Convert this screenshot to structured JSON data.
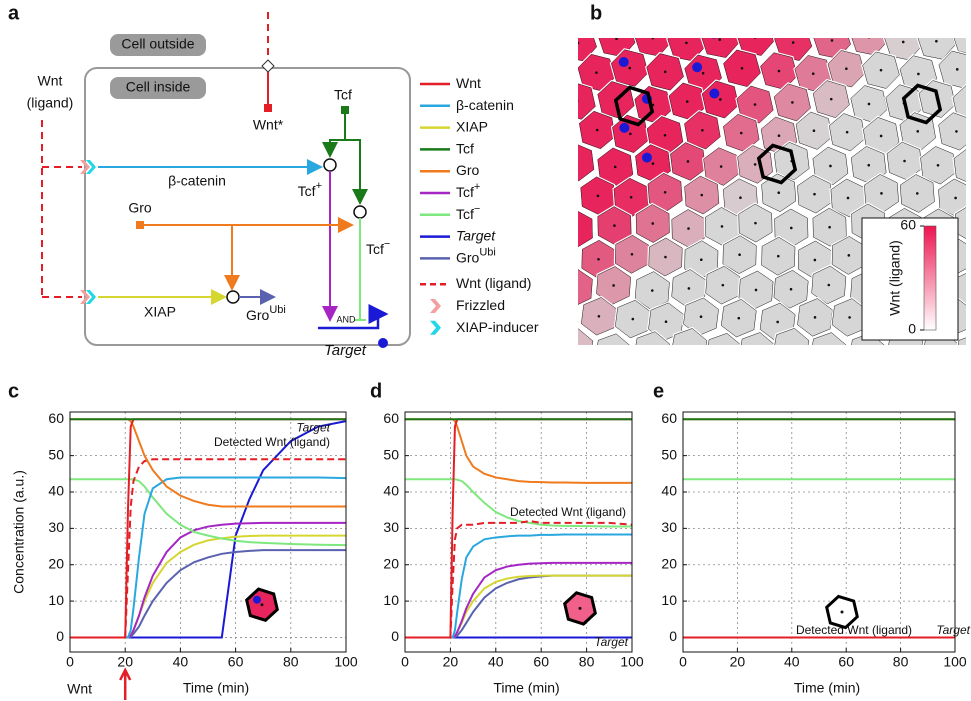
{
  "panel_labels": [
    "a",
    "b",
    "c",
    "d",
    "e"
  ],
  "diagram": {
    "cell_outside": "Cell outside",
    "cell_inside": "Cell inside",
    "wnt_ligand": [
      "Wnt",
      "(ligand)"
    ],
    "wnt_star": "Wnt*",
    "tcf": "Tcf",
    "beta_catenin": "β-catenin",
    "tcf_plus": {
      "base": "Tcf",
      "sup": "+"
    },
    "tcf_minus": {
      "base": "Tcf",
      "sup": "−"
    },
    "gro": "Gro",
    "gro_ubi": {
      "base": "Gro",
      "sup": "Ubi"
    },
    "xiap": "XIAP",
    "and": "AND",
    "target": "Target",
    "legend": [
      {
        "text": "Wnt",
        "color": "#e41e26",
        "style": "line"
      },
      {
        "text": "β-catenin",
        "color": "#29a8e0",
        "style": "line"
      },
      {
        "text": "XIAP",
        "color": "#d6d630",
        "style": "line"
      },
      {
        "text": "Tcf",
        "color": "#1a7a1a",
        "style": "line"
      },
      {
        "text": "Gro",
        "color": "#f07a1e",
        "style": "line"
      },
      {
        "text": "Tcf",
        "sup": "+",
        "color": "#a526c4",
        "style": "line"
      },
      {
        "text": "Tcf",
        "sup": "−",
        "color": "#7ee87e",
        "style": "line"
      },
      {
        "text": "Target",
        "italic": true,
        "color": "#1a1ad6",
        "style": "line"
      },
      {
        "text": "Gro",
        "sup": "Ubi",
        "color": "#5a62b0",
        "style": "line"
      },
      {
        "text": "Wnt (ligand)",
        "color": "#e41e26",
        "style": "dashed"
      },
      {
        "text": "Frizzled",
        "color": "#f4a0a0",
        "style": "chevron"
      },
      {
        "text": "XIAP-inducer",
        "color": "#22d8e8",
        "style": "chevron"
      }
    ]
  },
  "heatmap": {
    "colorbar_label": "Wnt (ligand)",
    "lim": [
      0,
      60
    ],
    "ticks": [
      0,
      60
    ]
  },
  "chart_data": [
    {
      "type": "line",
      "xlabel": "Time (min)",
      "ylabel": "Concentration (a.u.)",
      "annotations": [
        "Target",
        "Detected Wnt (ligand)",
        "Wnt"
      ],
      "xlim": [
        0,
        100
      ],
      "ylim": [
        -4,
        62
      ],
      "xticks": [
        0,
        20,
        40,
        60,
        80,
        100
      ],
      "yticks": [
        0,
        10,
        20,
        30,
        40,
        50,
        60
      ],
      "grid": true,
      "x": [
        0,
        19,
        20,
        21,
        22,
        23,
        25,
        27,
        30,
        35,
        40,
        45,
        50,
        55,
        60,
        65,
        70,
        80,
        90,
        100
      ],
      "series": [
        {
          "color": "#1a1ad6",
          "values": [
            0,
            0,
            0,
            0,
            0,
            0,
            0,
            0,
            0,
            0,
            0,
            0,
            0,
            0,
            28,
            38,
            46,
            54,
            58,
            59.5
          ]
        },
        {
          "color": "#5a62b0",
          "values": [
            0,
            0,
            0,
            0,
            0.2,
            1,
            3,
            6,
            10,
            15,
            18.5,
            20.7,
            22,
            23,
            23.5,
            23.8,
            24,
            24,
            24,
            24
          ]
        },
        {
          "color": "#d6d630",
          "values": [
            0,
            0,
            0,
            0,
            0.5,
            2,
            6,
            10,
            15,
            20.5,
            23.5,
            25.5,
            26.7,
            27.3,
            27.7,
            27.9,
            28,
            28,
            28,
            28
          ]
        },
        {
          "color": "#a526c4",
          "values": [
            0,
            0,
            0,
            0,
            0.5,
            2,
            6,
            11,
            17,
            23.5,
            27.5,
            29.5,
            30.5,
            31,
            31.3,
            31.4,
            31.5,
            31.5,
            31.5,
            31.5
          ]
        },
        {
          "color": "#7ee87e",
          "values": [
            43.5,
            43.5,
            43.5,
            43.5,
            43.5,
            43.4,
            43,
            41.5,
            38.5,
            34,
            31,
            29,
            28,
            27.2,
            26.6,
            26.2,
            26,
            25.7,
            25.5,
            25.4
          ]
        },
        {
          "color": "#29a8e0",
          "values": [
            0,
            0,
            0,
            0,
            2,
            8,
            22,
            34,
            41,
            43.5,
            44,
            44,
            44,
            44,
            44,
            44,
            44,
            44,
            44,
            43.8
          ]
        },
        {
          "color": "#e41e26",
          "dashed": true,
          "values": [
            0,
            0,
            0,
            18,
            36,
            43,
            47,
            48.5,
            49,
            49,
            49,
            49,
            49,
            49,
            49,
            49,
            49,
            49,
            49,
            49
          ]
        },
        {
          "color": "#f07a1e",
          "values": [
            60,
            60,
            60,
            60,
            59.5,
            58,
            54,
            50,
            46,
            41.5,
            39,
            37.5,
            36.5,
            36,
            36,
            36,
            36,
            36,
            36,
            36
          ]
        },
        {
          "color": "#e41e26",
          "values": [
            0,
            0,
            0,
            35,
            58,
            60,
            60,
            60,
            60,
            60,
            60,
            60,
            60,
            60,
            60,
            60,
            60,
            60,
            60,
            60
          ]
        },
        {
          "color": "#1a7a1a",
          "values": [
            60,
            60,
            60,
            60,
            60,
            60,
            60,
            60,
            60,
            60,
            60,
            60,
            60,
            60,
            60,
            60,
            60,
            60,
            60,
            60
          ]
        }
      ]
    },
    {
      "type": "line",
      "xlabel": "Time (min)",
      "annotations": [
        "Target",
        "Detected Wnt (ligand)"
      ],
      "xlim": [
        0,
        100
      ],
      "ylim": [
        -4,
        62
      ],
      "xticks": [
        0,
        20,
        40,
        60,
        80,
        100
      ],
      "yticks": [
        0,
        10,
        20,
        30,
        40,
        50,
        60
      ],
      "grid": true,
      "x": [
        0,
        19,
        20,
        21,
        22,
        23,
        25,
        27,
        30,
        35,
        40,
        45,
        50,
        55,
        60,
        65,
        70,
        80,
        90,
        100
      ],
      "series": [
        {
          "color": "#1a1ad6",
          "values": [
            0,
            0,
            0,
            0,
            0,
            0,
            0,
            0,
            0,
            0,
            0,
            0,
            0,
            0,
            0,
            0,
            0,
            0,
            0,
            0
          ]
        },
        {
          "color": "#5a62b0",
          "values": [
            0,
            0,
            0,
            0,
            0.1,
            0.5,
            2,
            4,
            7,
            11,
            13.5,
            15,
            16,
            16.5,
            16.8,
            17,
            17,
            17,
            17,
            17
          ]
        },
        {
          "color": "#d6d630",
          "values": [
            0,
            0,
            0,
            0,
            0.3,
            1.5,
            4,
            7,
            10,
            13.5,
            15.3,
            16.2,
            16.7,
            16.9,
            17,
            17,
            17,
            17,
            17,
            17
          ]
        },
        {
          "color": "#a526c4",
          "values": [
            0,
            0,
            0,
            0,
            0.3,
            1.5,
            4.5,
            8,
            12,
            16.5,
            18.5,
            19.5,
            20,
            20.3,
            20.4,
            20.5,
            20.5,
            20.5,
            20.5,
            20.5
          ]
        },
        {
          "color": "#7ee87e",
          "values": [
            43.5,
            43.5,
            43.5,
            43.5,
            43.5,
            43.4,
            43,
            42,
            40,
            37,
            34.5,
            33,
            32,
            31.5,
            31,
            30.8,
            30.7,
            30.6,
            30.5,
            30.5
          ]
        },
        {
          "color": "#29a8e0",
          "values": [
            0,
            0,
            0,
            0,
            2,
            7,
            16,
            22,
            25,
            27,
            27.5,
            27.8,
            28,
            28,
            28.2,
            28.2,
            28.3,
            28.3,
            28.3,
            28.3
          ]
        },
        {
          "color": "#e41e26",
          "dashed": true,
          "values": [
            0,
            0,
            0,
            15,
            27,
            30,
            31,
            31,
            31,
            31.5,
            31.5,
            31.5,
            31.5,
            32,
            31.5,
            31.5,
            31.5,
            31.5,
            31.5,
            31
          ]
        },
        {
          "color": "#f07a1e",
          "values": [
            60,
            60,
            60,
            60,
            59.5,
            58,
            54,
            50,
            47,
            45,
            44,
            43.5,
            43,
            42.8,
            42.7,
            42.6,
            42.6,
            42.5,
            42.5,
            42.5
          ]
        },
        {
          "color": "#e41e26",
          "values": [
            0,
            0,
            0,
            35,
            58,
            60,
            60,
            60,
            60,
            60,
            60,
            60,
            60,
            60,
            60,
            60,
            60,
            60,
            60,
            60
          ]
        },
        {
          "color": "#1a7a1a",
          "values": [
            60,
            60,
            60,
            60,
            60,
            60,
            60,
            60,
            60,
            60,
            60,
            60,
            60,
            60,
            60,
            60,
            60,
            60,
            60,
            60
          ]
        }
      ]
    },
    {
      "type": "line",
      "xlabel": "Time (min)",
      "annotations": [
        "Target",
        "Detected Wnt (ligand)"
      ],
      "xlim": [
        0,
        100
      ],
      "ylim": [
        -4,
        62
      ],
      "xticks": [
        0,
        20,
        40,
        60,
        80,
        100
      ],
      "yticks": [
        0,
        10,
        20,
        30,
        40,
        50,
        60
      ],
      "grid": true,
      "x": [
        0,
        19,
        20,
        21,
        22,
        23,
        25,
        27,
        30,
        35,
        40,
        45,
        50,
        55,
        60,
        65,
        70,
        80,
        90,
        100
      ],
      "series": [
        {
          "color": "#1a1ad6",
          "values": [
            0,
            0,
            0,
            0,
            0,
            0,
            0,
            0,
            0,
            0,
            0,
            0,
            0,
            0,
            0,
            0,
            0,
            0,
            0,
            0
          ]
        },
        {
          "color": "#5a62b0",
          "values": [
            0,
            0,
            0,
            0,
            0,
            0,
            0,
            0,
            0,
            0,
            0,
            0,
            0,
            0,
            0,
            0,
            0,
            0,
            0,
            0
          ]
        },
        {
          "color": "#d6d630",
          "values": [
            0,
            0,
            0,
            0,
            0,
            0,
            0,
            0,
            0,
            0,
            0,
            0,
            0,
            0,
            0,
            0,
            0,
            0,
            0,
            0
          ]
        },
        {
          "color": "#a526c4",
          "values": [
            0,
            0,
            0,
            0,
            0,
            0,
            0,
            0,
            0,
            0,
            0,
            0,
            0,
            0,
            0,
            0,
            0,
            0,
            0,
            0
          ]
        },
        {
          "color": "#7ee87e",
          "values": [
            43.5,
            43.5,
            43.5,
            43.5,
            43.5,
            43.5,
            43.5,
            43.5,
            43.5,
            43.5,
            43.5,
            43.5,
            43.5,
            43.5,
            43.5,
            43.5,
            43.5,
            43.5,
            43.5,
            43.5
          ]
        },
        {
          "color": "#29a8e0",
          "values": [
            0,
            0,
            0,
            0,
            0,
            0,
            0,
            0,
            0,
            0,
            0,
            0,
            0,
            0,
            0,
            0,
            0,
            0,
            0,
            0
          ]
        },
        {
          "color": "#e41e26",
          "dashed": true,
          "values": [
            0,
            0,
            0,
            0,
            0,
            0,
            0,
            0,
            0,
            0,
            0,
            0,
            0,
            0,
            0,
            0,
            0,
            0,
            0,
            0
          ]
        },
        {
          "color": "#f07a1e",
          "values": [
            60,
            60,
            60,
            60,
            60,
            60,
            60,
            60,
            60,
            60,
            60,
            60,
            60,
            60,
            60,
            60,
            60,
            60,
            60,
            60
          ]
        },
        {
          "color": "#e41e26",
          "values": [
            0,
            0,
            0,
            0,
            0,
            0,
            0,
            0,
            0,
            0,
            0,
            0,
            0,
            0,
            0,
            0,
            0,
            0,
            0,
            0
          ]
        },
        {
          "color": "#1a7a1a",
          "values": [
            60,
            60,
            60,
            60,
            60,
            60,
            60,
            60,
            60,
            60,
            60,
            60,
            60,
            60,
            60,
            60,
            60,
            60,
            60,
            60
          ]
        }
      ]
    }
  ]
}
